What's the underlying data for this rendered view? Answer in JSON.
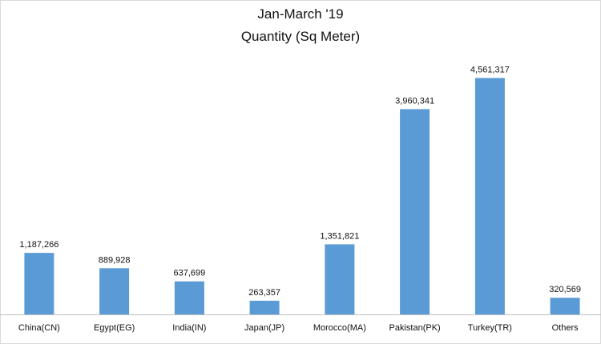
{
  "chart_data": {
    "type": "bar",
    "title": "Jan-March '19",
    "subtitle": "Quantity (Sq Meter)",
    "categories": [
      "China(CN)",
      "Egypt(EG)",
      "India(IN)",
      "Japan(JP)",
      "Morocco(MA)",
      "Pakistan(PK)",
      "Turkey(TR)",
      "Others"
    ],
    "values": [
      1187266,
      889928,
      637699,
      263357,
      1351821,
      3960341,
      4561317,
      320569
    ],
    "value_labels": [
      "1,187,266",
      "889,928",
      "637,699",
      "263,357",
      "1,351,821",
      "3,960,341",
      "4,561,317",
      "320,569"
    ],
    "xlabel": "",
    "ylabel": "",
    "ylim": [
      0,
      5000000
    ],
    "bar_color": "#5b9bd5",
    "grid": false,
    "legend": "none"
  }
}
